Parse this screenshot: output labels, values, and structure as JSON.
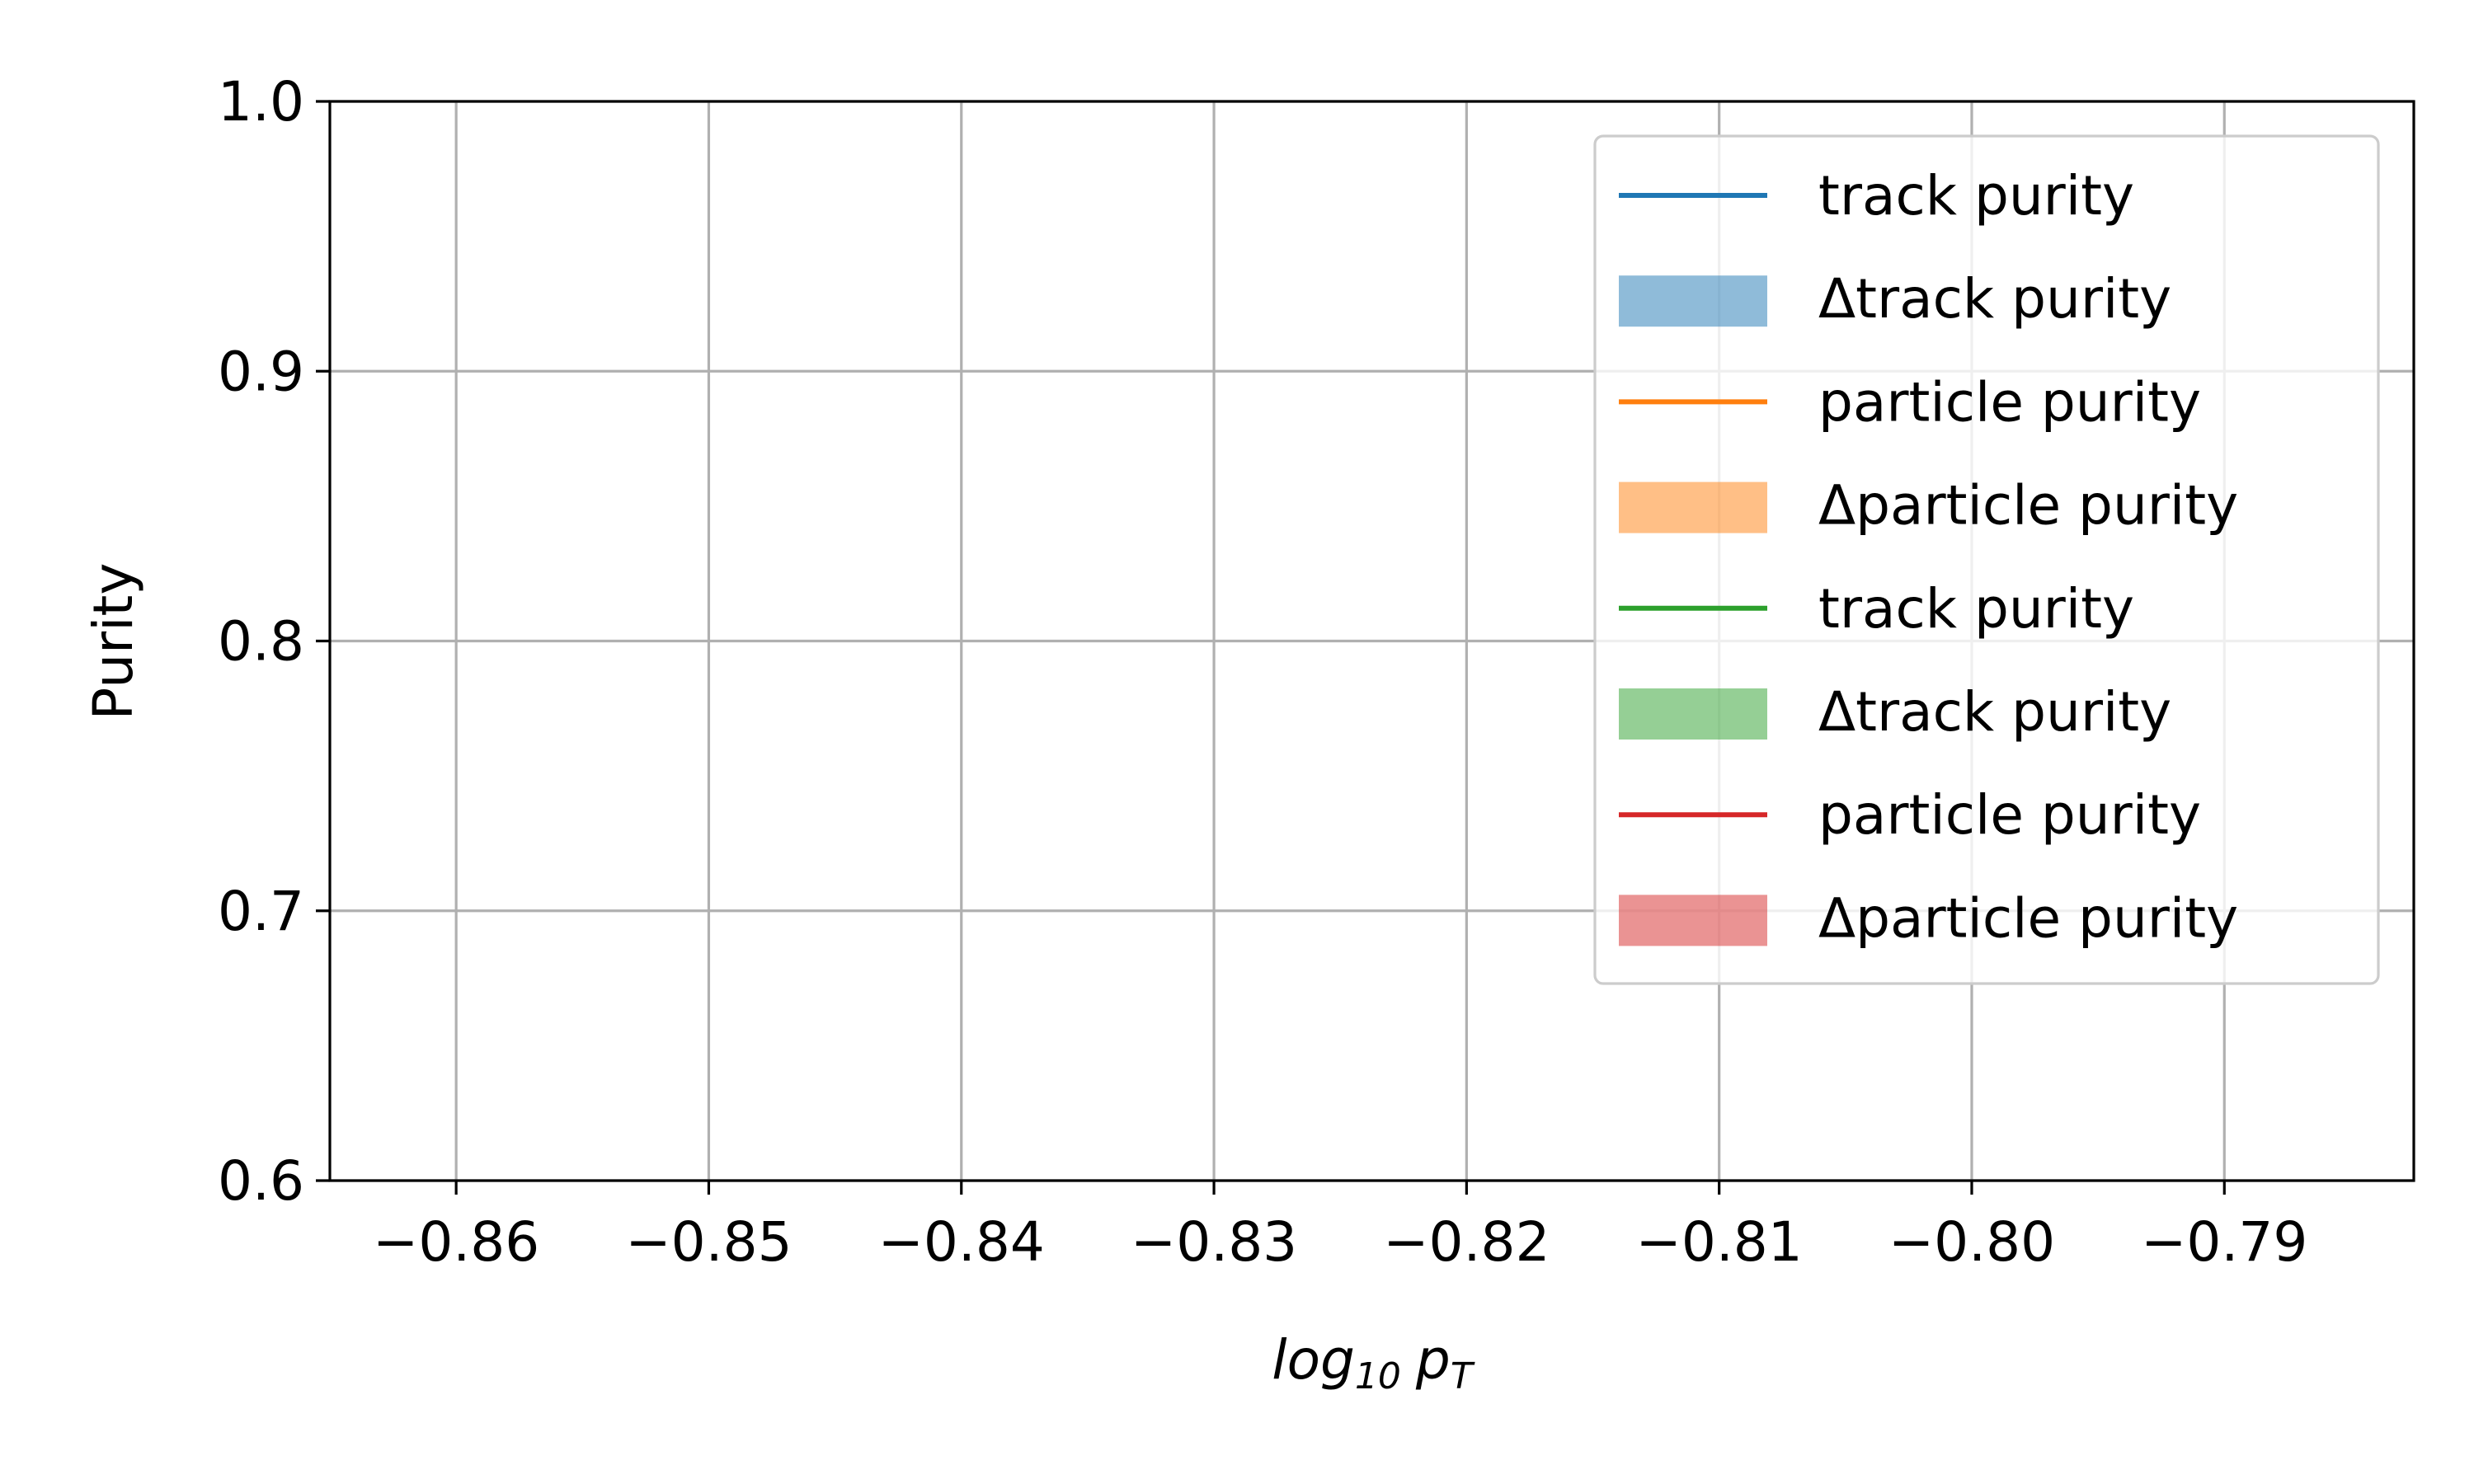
{
  "chart_data": {
    "type": "line",
    "title": "",
    "xlabel": "log",
    "xlabel_subscript": "10",
    "xlabel_suffix": "p",
    "xlabel_suffix_subscript": "T",
    "ylabel": "Purity",
    "xlim": [
      -0.865,
      -0.7825
    ],
    "ylim": [
      0.6,
      1.0
    ],
    "x_ticks": [
      -0.86,
      -0.85,
      -0.84,
      -0.83,
      -0.82,
      -0.81,
      -0.8,
      -0.79
    ],
    "x_tick_labels": [
      "−0.86",
      "−0.85",
      "−0.84",
      "−0.83",
      "−0.82",
      "−0.81",
      "−0.80",
      "−0.79"
    ],
    "y_ticks": [
      0.6,
      0.7,
      0.8,
      0.9,
      1.0
    ],
    "y_tick_labels": [
      "0.6",
      "0.7",
      "0.8",
      "0.9",
      "1.0"
    ],
    "grid": true,
    "legend_position": "top-right",
    "series": [
      {
        "name": "track purity",
        "kind": "line",
        "color": "#1f77b4",
        "x": [],
        "y": []
      },
      {
        "name": "Δtrack purity",
        "kind": "band",
        "color": "#1f77b4",
        "x": [],
        "y_low": [],
        "y_high": []
      },
      {
        "name": "particle purity",
        "kind": "line",
        "color": "#ff7f0e",
        "x": [],
        "y": []
      },
      {
        "name": "Δparticle purity",
        "kind": "band",
        "color": "#ff7f0e",
        "x": [],
        "y_low": [],
        "y_high": []
      },
      {
        "name": "track purity",
        "kind": "line",
        "color": "#2ca02c",
        "x": [],
        "y": []
      },
      {
        "name": "Δtrack purity",
        "kind": "band",
        "color": "#2ca02c",
        "x": [],
        "y_low": [],
        "y_high": []
      },
      {
        "name": "particle purity",
        "kind": "line",
        "color": "#d62728",
        "x": [],
        "y": []
      },
      {
        "name": "Δparticle purity",
        "kind": "band",
        "color": "#d62728",
        "x": [],
        "y_low": [],
        "y_high": []
      }
    ]
  }
}
